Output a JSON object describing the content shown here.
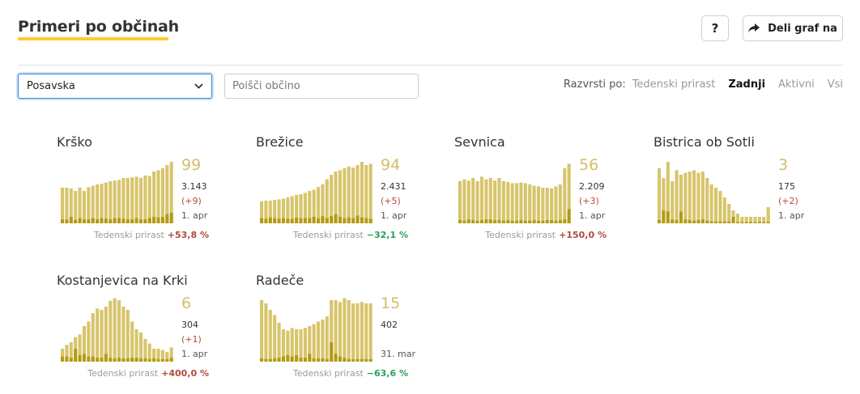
{
  "header": {
    "title": "Primeri po občinah",
    "help_label": "?",
    "share_label": "Deli graf na"
  },
  "filters": {
    "region_value": "Posavska",
    "search_placeholder": "Poišči občino"
  },
  "sort": {
    "label": "Razvrsti po:",
    "options": [
      "Tedenski prirast",
      "Zadnji",
      "Aktivni",
      "Vsi"
    ],
    "active": "Zadnji"
  },
  "colors": {
    "bar": "#d7c56b",
    "bar_dark": "#b39b12",
    "accent": "#fecb2f",
    "positive_growth": "#b04a3c",
    "negative_growth": "#2a9d5c"
  },
  "growth_label": "Tedenski prirast",
  "cards": [
    {
      "name": "Krško",
      "active": "99",
      "total": "3.143",
      "increase": "(+9)",
      "date": "1. apr",
      "growth": "+53,8 %",
      "growth_sign": "pos",
      "bars": [
        0.55,
        0.55,
        0.54,
        0.5,
        0.55,
        0.5,
        0.56,
        0.58,
        0.6,
        0.61,
        0.63,
        0.65,
        0.66,
        0.67,
        0.7,
        0.7,
        0.71,
        0.72,
        0.7,
        0.74,
        0.73,
        0.8,
        0.82,
        0.85,
        0.9,
        0.95
      ],
      "dark": [
        0.06,
        0.06,
        0.1,
        0.05,
        0.08,
        0.06,
        0.06,
        0.08,
        0.06,
        0.08,
        0.07,
        0.06,
        0.08,
        0.08,
        0.07,
        0.06,
        0.06,
        0.08,
        0.06,
        0.06,
        0.08,
        0.1,
        0.09,
        0.1,
        0.14,
        0.16
      ]
    },
    {
      "name": "Brežice",
      "active": "94",
      "total": "2.431",
      "increase": "(+5)",
      "date": "1. apr",
      "growth": "−32,1 %",
      "growth_sign": "neg",
      "bars": [
        0.34,
        0.35,
        0.35,
        0.36,
        0.37,
        0.38,
        0.4,
        0.42,
        0.44,
        0.45,
        0.47,
        0.5,
        0.52,
        0.56,
        0.6,
        0.68,
        0.75,
        0.8,
        0.82,
        0.85,
        0.88,
        0.86,
        0.9,
        0.95,
        0.9,
        0.92
      ],
      "dark": [
        0.08,
        0.07,
        0.09,
        0.08,
        0.07,
        0.08,
        0.07,
        0.07,
        0.09,
        0.08,
        0.08,
        0.08,
        0.1,
        0.08,
        0.11,
        0.08,
        0.11,
        0.14,
        0.1,
        0.08,
        0.09,
        0.08,
        0.12,
        0.09,
        0.08,
        0.07
      ]
    },
    {
      "name": "Sevnica",
      "active": "56",
      "total": "2.209",
      "increase": "(+3)",
      "date": "1. apr",
      "growth": "+150,0 %",
      "growth_sign": "pos",
      "bars": [
        0.65,
        0.68,
        0.66,
        0.7,
        0.65,
        0.72,
        0.68,
        0.7,
        0.66,
        0.7,
        0.65,
        0.64,
        0.62,
        0.62,
        0.63,
        0.62,
        0.6,
        0.58,
        0.57,
        0.55,
        0.55,
        0.54,
        0.57,
        0.6,
        0.85,
        0.92
      ],
      "dark": [
        0.05,
        0.04,
        0.06,
        0.05,
        0.04,
        0.05,
        0.06,
        0.06,
        0.05,
        0.05,
        0.04,
        0.05,
        0.04,
        0.04,
        0.05,
        0.04,
        0.04,
        0.05,
        0.04,
        0.04,
        0.05,
        0.05,
        0.04,
        0.05,
        0.06,
        0.22
      ]
    },
    {
      "name": "Bistrica ob Sotli",
      "active": "3",
      "total": "175",
      "increase": "(+2)",
      "date": "1. apr",
      "growth": "",
      "growth_sign": "pos",
      "bars": [
        0.85,
        0.7,
        0.95,
        0.65,
        0.82,
        0.75,
        0.78,
        0.8,
        0.82,
        0.78,
        0.8,
        0.7,
        0.6,
        0.55,
        0.5,
        0.4,
        0.3,
        0.2,
        0.15,
        0.1,
        0.1,
        0.1,
        0.1,
        0.1,
        0.1,
        0.25
      ],
      "dark": [
        0.05,
        0.2,
        0.18,
        0.06,
        0.05,
        0.18,
        0.06,
        0.05,
        0.04,
        0.05,
        0.06,
        0.04,
        0.03,
        0.03,
        0.03,
        0.03,
        0.03,
        0.1,
        0.02,
        0.02,
        0.02,
        0.02,
        0.02,
        0.02,
        0.02,
        0.02
      ]
    },
    {
      "name": "Kostanjevica na Krki",
      "active": "6",
      "total": "304",
      "increase": "(+1)",
      "date": "1. apr",
      "growth": "+400,0 %",
      "growth_sign": "pos",
      "bars": [
        0.2,
        0.26,
        0.3,
        0.38,
        0.42,
        0.55,
        0.62,
        0.75,
        0.82,
        0.8,
        0.85,
        0.94,
        0.98,
        0.95,
        0.85,
        0.8,
        0.62,
        0.5,
        0.45,
        0.35,
        0.28,
        0.2,
        0.2,
        0.18,
        0.15,
        0.22
      ],
      "dark": [
        0.08,
        0.08,
        0.06,
        0.2,
        0.1,
        0.12,
        0.08,
        0.08,
        0.06,
        0.06,
        0.12,
        0.06,
        0.05,
        0.06,
        0.05,
        0.05,
        0.06,
        0.06,
        0.05,
        0.05,
        0.04,
        0.05,
        0.04,
        0.04,
        0.04,
        0.06
      ]
    },
    {
      "name": "Radeče",
      "active": "15",
      "total": "402",
      "increase": "",
      "date": "31. mar",
      "growth": "−63,6 %",
      "growth_sign": "neg",
      "bars": [
        0.95,
        0.9,
        0.8,
        0.72,
        0.6,
        0.5,
        0.48,
        0.52,
        0.5,
        0.5,
        0.52,
        0.55,
        0.58,
        0.62,
        0.65,
        0.7,
        0.95,
        0.95,
        0.92,
        0.98,
        0.95,
        0.9,
        0.9,
        0.92,
        0.9,
        0.9
      ],
      "dark": [
        0.05,
        0.04,
        0.04,
        0.05,
        0.06,
        0.08,
        0.1,
        0.08,
        0.1,
        0.06,
        0.06,
        0.12,
        0.05,
        0.05,
        0.05,
        0.04,
        0.3,
        0.12,
        0.08,
        0.06,
        0.04,
        0.04,
        0.04,
        0.04,
        0.04,
        0.04
      ]
    }
  ]
}
